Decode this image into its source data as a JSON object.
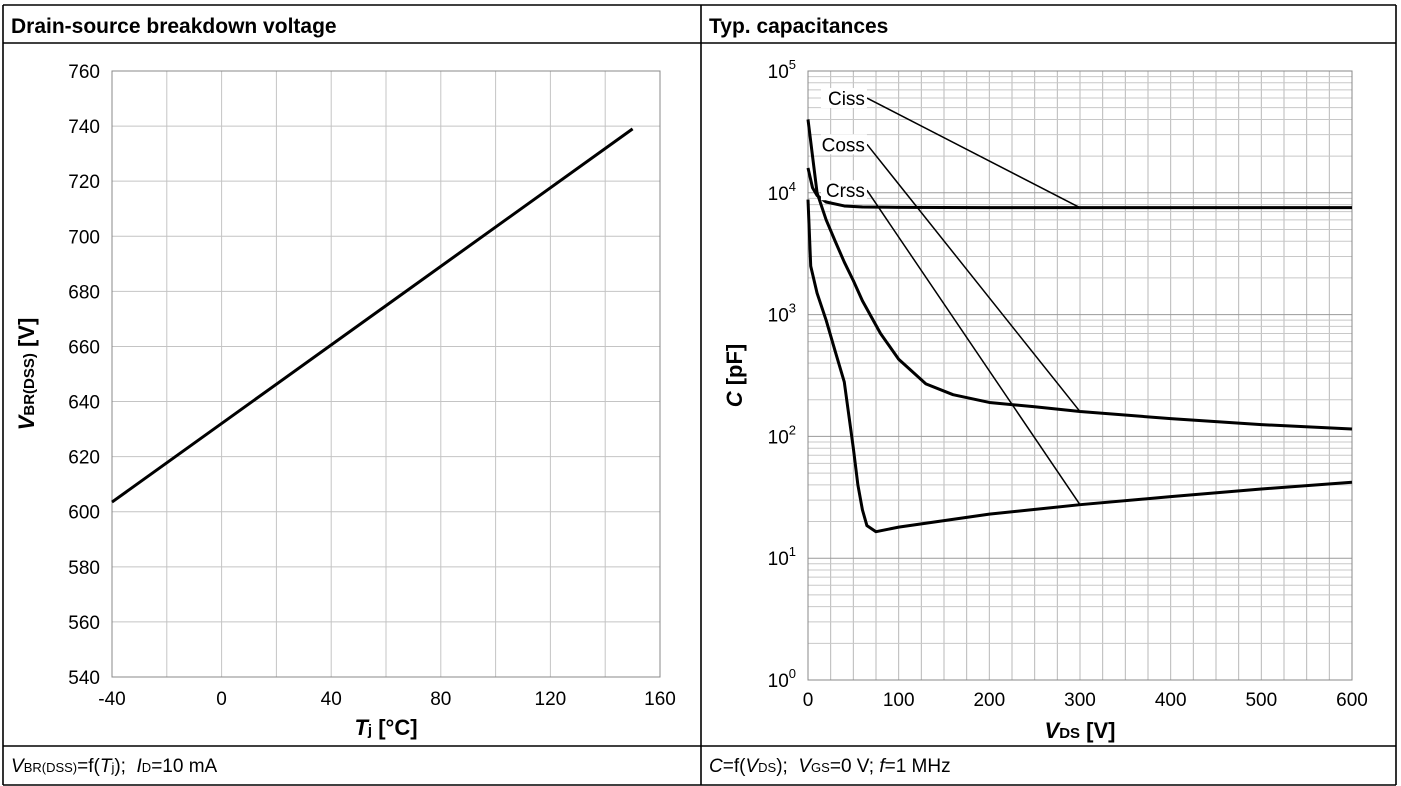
{
  "panels": [
    {
      "title": "Drain-source breakdown voltage",
      "condition": {
        "func_sym": "V",
        "func_sub": "BR(DSS)",
        "func_eq": "=f(",
        "arg_sym": "T",
        "arg_sub": "j",
        "arg_close": ");",
        "param_sym": "I",
        "param_sub": "D",
        "param_val": "=10 mA"
      }
    },
    {
      "title": "Typ. capacitances",
      "condition": {
        "func_sym": "C",
        "func_eq": "=f(",
        "arg_sym": "V",
        "arg_sub": "DS",
        "arg_close": ");",
        "p1_sym": "V",
        "p1_sub": "GS",
        "p1_val": "=0 V;",
        "p2_sym": "f",
        "p2_val": "=1 MHz"
      }
    }
  ],
  "chart_data": [
    {
      "type": "line",
      "xlabel": {
        "sym": "T",
        "sub": "j",
        "unit": " [°C]"
      },
      "ylabel": {
        "sym": "V",
        "sub": "BR(DSS)",
        "unit": " [V]"
      },
      "xlim": [
        -40,
        160
      ],
      "ylim": [
        540,
        760
      ],
      "x_ticks": [
        "-40",
        "0",
        "40",
        "80",
        "120",
        "160"
      ],
      "y_ticks": [
        "540",
        "560",
        "580",
        "600",
        "620",
        "640",
        "660",
        "680",
        "700",
        "720",
        "740",
        "760"
      ],
      "grid": true,
      "series": [
        {
          "x": [
            -40,
            150
          ],
          "y": [
            603.5,
            739
          ]
        }
      ]
    },
    {
      "type": "line",
      "xlabel": {
        "sym": "V",
        "sub": "DS",
        "unit": " [V]"
      },
      "ylabel": {
        "sym": "C",
        "unit": " [pF]"
      },
      "xlim": [
        0,
        600
      ],
      "ylim": [
        1,
        100000
      ],
      "y_scale": "log",
      "x_ticks": [
        "0",
        "100",
        "200",
        "300",
        "400",
        "500",
        "600"
      ],
      "y_ticks": [
        {
          "base": "10",
          "exp": "0"
        },
        {
          "base": "10",
          "exp": "1"
        },
        {
          "base": "10",
          "exp": "2"
        },
        {
          "base": "10",
          "exp": "3"
        },
        {
          "base": "10",
          "exp": "4"
        },
        {
          "base": "10",
          "exp": "5"
        }
      ],
      "grid": true,
      "series": [
        {
          "name": "Ciss",
          "x": [
            0,
            5,
            10,
            20,
            40,
            60,
            100,
            200,
            300,
            400,
            500,
            600
          ],
          "y": [
            16000,
            11000,
            9500,
            8400,
            7800,
            7650,
            7600,
            7550,
            7550,
            7550,
            7550,
            7550
          ],
          "label_at": {
            "x": 65,
            "y": 60000
          },
          "leader_end": {
            "x": 300,
            "y": 7550
          }
        },
        {
          "name": "Coss",
          "x": [
            0,
            5,
            10,
            20,
            30,
            40,
            50,
            60,
            80,
            100,
            130,
            160,
            200,
            250,
            300,
            400,
            500,
            600
          ],
          "y": [
            40000,
            20000,
            10000,
            6000,
            4000,
            2700,
            1900,
            1300,
            700,
            430,
            270,
            220,
            190,
            175,
            160,
            140,
            125,
            115
          ],
          "label_at": {
            "x": 65,
            "y": 25000
          },
          "leader_end": {
            "x": 300,
            "y": 160
          }
        },
        {
          "name": "Crss",
          "x": [
            0,
            3,
            10,
            20,
            30,
            40,
            50,
            55,
            60,
            65,
            75,
            100,
            200,
            300,
            400,
            500,
            600
          ],
          "y": [
            8800,
            2500,
            1500,
            900,
            500,
            280,
            80,
            40,
            25,
            18.5,
            16.5,
            18,
            23,
            27.5,
            32,
            37,
            42
          ],
          "label_at": {
            "x": 65,
            "y": 10500
          },
          "leader_end": {
            "x": 300,
            "y": 27.5
          }
        }
      ]
    }
  ]
}
